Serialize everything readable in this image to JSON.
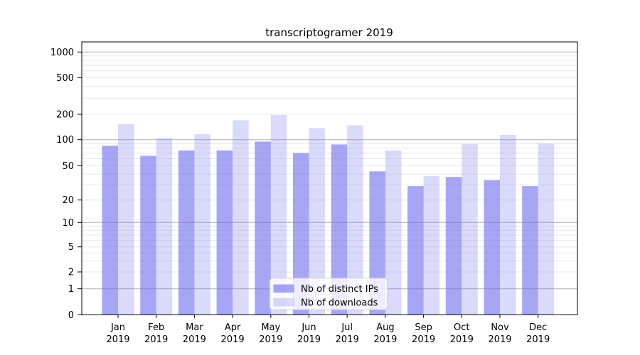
{
  "title": "transcriptogramer 2019",
  "chart_data": {
    "type": "bar",
    "title": "transcriptogramer 2019",
    "yscale": "log-with-zero-baseline",
    "yticks": [
      0,
      1,
      2,
      5,
      10,
      20,
      50,
      100,
      200,
      500,
      1000
    ],
    "grid": "major and minor horizontal gridlines",
    "legend_position": "lower-center",
    "year": "2019",
    "months": [
      "Jan",
      "Feb",
      "Mar",
      "Apr",
      "May",
      "Jun",
      "Jul",
      "Aug",
      "Sep",
      "Oct",
      "Nov",
      "Dec"
    ],
    "categories": [
      "Jan 2019",
      "Feb 2019",
      "Mar 2019",
      "Apr 2019",
      "May 2019",
      "Jun 2019",
      "Jul 2019",
      "Aug 2019",
      "Sep 2019",
      "Oct 2019",
      "Nov 2019",
      "Dec 2019"
    ],
    "series": [
      {
        "name": "Nb of distinct IPs",
        "fill": "#6b6bec",
        "fill_opacity": 0.6,
        "rendered_color": "#a3a3f0",
        "values": [
          85,
          65,
          75,
          75,
          95,
          70,
          88,
          43,
          29,
          37,
          34,
          29
        ]
      },
      {
        "name": "Nb of downloads",
        "fill": "#6b6bec",
        "fill_opacity": 0.25,
        "rendered_color": "#d9d9f8",
        "values": [
          153,
          105,
          116,
          170,
          196,
          137,
          148,
          75,
          38,
          89,
          114,
          90
        ]
      }
    ]
  },
  "colors": {
    "grid_major": "#b0b0b0",
    "grid_minor": "#e8e8e8",
    "axis": "#000000",
    "legend_border": "#cccccc",
    "legend_bg": "#ffffff"
  }
}
